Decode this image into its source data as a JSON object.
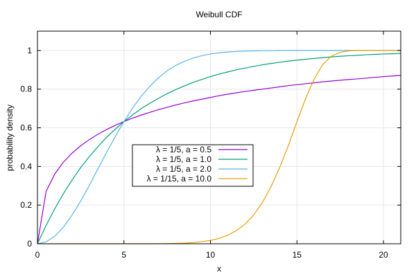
{
  "chart_data": {
    "type": "line",
    "title": "Weibull CDF",
    "xlabel": "x",
    "ylabel": "probability density",
    "xlim": [
      0,
      21
    ],
    "ylim": [
      0,
      1.1
    ],
    "x_ticks": [
      "0",
      "5",
      "10",
      "15",
      "20"
    ],
    "y_ticks": [
      "0",
      "0.2",
      "0.4",
      "0.6",
      "0.8",
      "1"
    ],
    "grid": true,
    "legend_position": "center-left",
    "x": [
      0,
      0.5,
      1,
      1.5,
      2,
      2.5,
      3,
      3.5,
      4,
      4.5,
      5,
      5.5,
      6,
      6.5,
      7,
      7.5,
      8,
      8.5,
      9,
      9.5,
      10,
      10.5,
      11,
      11.5,
      12,
      12.5,
      13,
      13.5,
      14,
      14.5,
      15,
      15.5,
      16,
      16.5,
      17,
      17.5,
      18,
      18.5,
      19,
      19.5,
      20,
      20.5,
      21
    ],
    "series": [
      {
        "name": "λ = 1/5, a = 0.5",
        "color": "#9400d3",
        "values": [
          0,
          0.271,
          0.361,
          0.422,
          0.469,
          0.507,
          0.539,
          0.567,
          0.591,
          0.613,
          0.632,
          0.65,
          0.666,
          0.68,
          0.694,
          0.706,
          0.718,
          0.729,
          0.739,
          0.748,
          0.757,
          0.766,
          0.774,
          0.781,
          0.788,
          0.794,
          0.8,
          0.806,
          0.812,
          0.818,
          0.823,
          0.828,
          0.833,
          0.838,
          0.842,
          0.846,
          0.85,
          0.853,
          0.857,
          0.861,
          0.865,
          0.868,
          0.871
        ]
      },
      {
        "name": "λ = 1/5, a = 1.0",
        "color": "#009e73",
        "values": [
          0,
          0.095,
          0.181,
          0.259,
          0.33,
          0.394,
          0.451,
          0.503,
          0.551,
          0.593,
          0.632,
          0.667,
          0.699,
          0.727,
          0.753,
          0.777,
          0.798,
          0.817,
          0.835,
          0.85,
          0.865,
          0.878,
          0.889,
          0.9,
          0.909,
          0.918,
          0.926,
          0.933,
          0.939,
          0.945,
          0.95,
          0.955,
          0.959,
          0.963,
          0.967,
          0.97,
          0.973,
          0.975,
          0.978,
          0.98,
          0.982,
          0.983,
          0.985
        ]
      },
      {
        "name": "λ = 1/5, a = 2.0",
        "color": "#56b4e9",
        "values": [
          0,
          0.01,
          0.039,
          0.086,
          0.148,
          0.221,
          0.302,
          0.388,
          0.473,
          0.555,
          0.632,
          0.702,
          0.763,
          0.815,
          0.859,
          0.895,
          0.923,
          0.944,
          0.961,
          0.973,
          0.982,
          0.988,
          0.992,
          0.995,
          0.997,
          0.998,
          0.999,
          0.999,
          1.0,
          1.0,
          1.0,
          1.0,
          1.0,
          1.0,
          1.0,
          1.0,
          1.0,
          1.0,
          1.0,
          1.0,
          1.0,
          1.0,
          1.0
        ]
      },
      {
        "name": "λ = 1/15, a = 10.0",
        "color": "#e69f00",
        "values": [
          0,
          0,
          0,
          0,
          0,
          0,
          0,
          0,
          0,
          0,
          0,
          0,
          0,
          0.0001,
          0.0005,
          0.001,
          0.002,
          0.003,
          0.006,
          0.011,
          0.017,
          0.028,
          0.044,
          0.068,
          0.101,
          0.149,
          0.213,
          0.295,
          0.394,
          0.507,
          0.632,
          0.751,
          0.853,
          0.928,
          0.971,
          0.991,
          0.998,
          1.0,
          1.0,
          1.0,
          1.0,
          1.0,
          1.0
        ]
      }
    ]
  }
}
